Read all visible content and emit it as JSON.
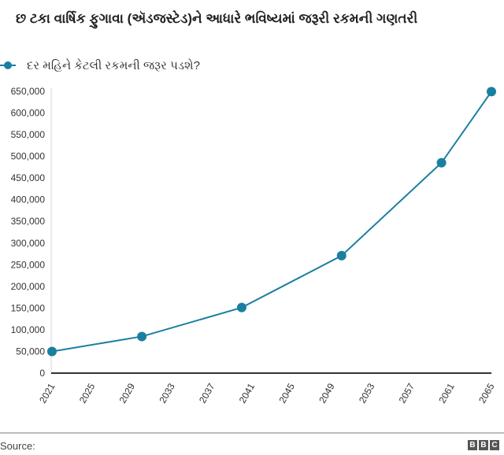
{
  "title": "છ ટકા વાર્ષિક ફુગાવા (ઍડજસ્ટેડ)ને આધારે ભવિષ્યમાં જરૂરી રકમની ગણતરી",
  "legend": {
    "label": "દર મહિને કેટલી રકમની જરૂર પડશે?",
    "color": "#1a7fa0"
  },
  "footer": {
    "source_label": "Source:",
    "logo": [
      "B",
      "B",
      "C"
    ]
  },
  "chart_data": {
    "type": "line",
    "title": "છ ટકા વાર્ષિક ફુગાવા (ઍડજસ્ટેડ)ને આધારે ભવિષ્યમાં જરૂરી રકમની ગણતરી",
    "xlabel": "",
    "ylabel": "",
    "x": [
      2021,
      2030,
      2040,
      2050,
      2060,
      2065
    ],
    "series": [
      {
        "name": "દર મહિને કેટલી રકમની જરૂર પડશે?",
        "values": [
          50000,
          84500,
          151300,
          270900,
          485200,
          649300
        ],
        "color": "#1a7fa0"
      }
    ],
    "xticks": [
      "2021",
      "2025",
      "2029",
      "2033",
      "2037",
      "2041",
      "2045",
      "2049",
      "2053",
      "2057",
      "2061",
      "2065"
    ],
    "yticks": [
      "0",
      "50,000",
      "100,000",
      "150,000",
      "200,000",
      "250,000",
      "300,000",
      "350,000",
      "400,000",
      "450,000",
      "500,000",
      "550,000",
      "600,000",
      "650,000"
    ],
    "xlim": [
      2021,
      2065
    ],
    "ylim": [
      0,
      650000
    ],
    "grid": false,
    "legend_position": "top-left"
  }
}
